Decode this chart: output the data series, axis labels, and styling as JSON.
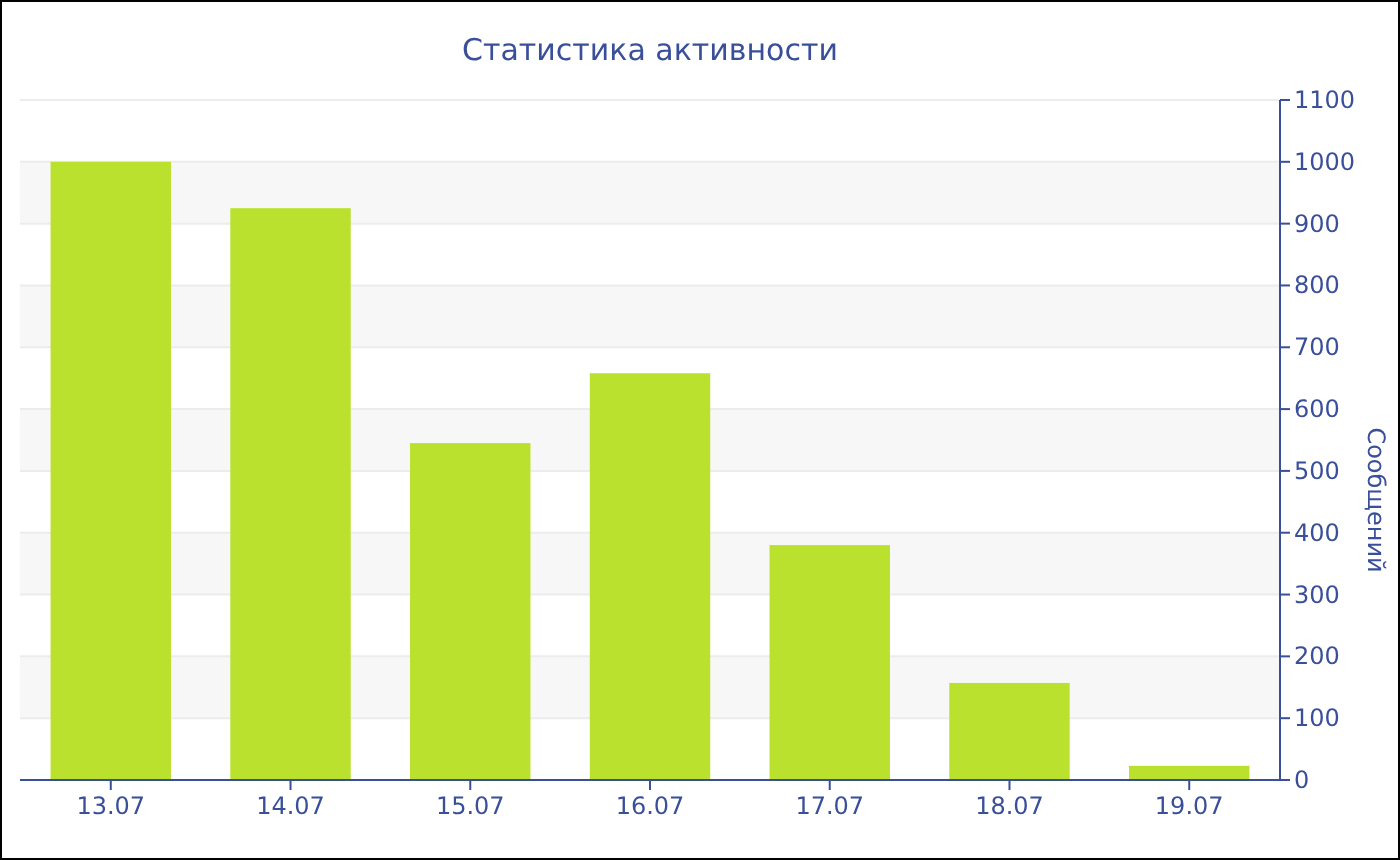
{
  "chart_data": {
    "type": "bar",
    "title": "Статистика активности",
    "ylabel": "Сообщений",
    "categories": [
      "13.07",
      "14.07",
      "15.07",
      "16.07",
      "17.07",
      "18.07",
      "19.07"
    ],
    "values": [
      1000,
      925,
      545,
      658,
      380,
      157,
      23
    ],
    "color": "#bbe12f",
    "ylim": [
      0,
      1100
    ],
    "yticks": [
      0,
      100,
      200,
      300,
      400,
      500,
      600,
      700,
      800,
      900,
      1000,
      1100
    ],
    "grid": "y"
  }
}
